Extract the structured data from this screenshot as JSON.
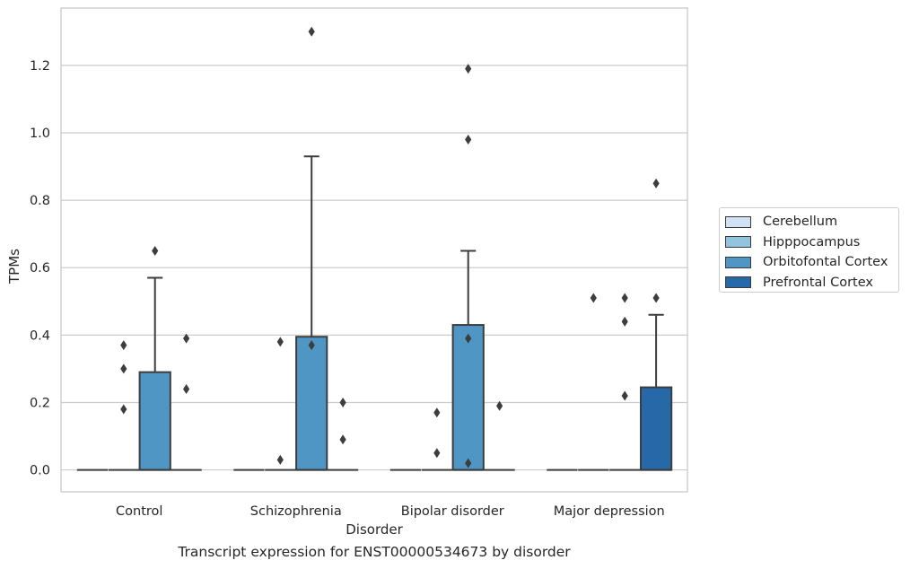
{
  "chart_data": {
    "type": "box",
    "title": "",
    "caption": "Transcript expression for ENST00000534673 by disorder",
    "xlabel": "Disorder",
    "ylabel": "TPMs",
    "ylim": [
      -0.065,
      1.37
    ],
    "yticks": [
      0.0,
      0.2,
      0.4,
      0.6,
      0.8,
      1.0,
      1.2
    ],
    "ytick_labels": [
      "0.0",
      "0.2",
      "0.4",
      "0.6",
      "0.8",
      "1.0",
      "1.2"
    ],
    "grid": "horizontal",
    "legend_position": "right",
    "categories": [
      "Control",
      "Schizophrenia",
      "Bipolar disorder",
      "Major depression"
    ],
    "series": [
      {
        "name": "Cerebellum",
        "color": "#cfe1f2",
        "boxes": [
          {
            "category": "Control",
            "q1": 0,
            "median": 0,
            "q3": 0,
            "whisker_low": 0,
            "whisker_high": 0,
            "outliers": []
          },
          {
            "category": "Schizophrenia",
            "q1": 0,
            "median": 0,
            "q3": 0,
            "whisker_low": 0,
            "whisker_high": 0,
            "outliers": []
          },
          {
            "category": "Bipolar disorder",
            "q1": 0,
            "median": 0,
            "q3": 0,
            "whisker_low": 0,
            "whisker_high": 0,
            "outliers": []
          },
          {
            "category": "Major depression",
            "q1": 0,
            "median": 0,
            "q3": 0,
            "whisker_low": 0,
            "whisker_high": 0,
            "outliers": []
          }
        ]
      },
      {
        "name": "Hipppocampus",
        "color": "#93c4de",
        "boxes": [
          {
            "category": "Control",
            "q1": 0,
            "median": 0,
            "q3": 0,
            "whisker_low": 0,
            "whisker_high": 0,
            "outliers": [
              0.37,
              0.3,
              0.18
            ]
          },
          {
            "category": "Schizophrenia",
            "q1": 0,
            "median": 0,
            "q3": 0,
            "whisker_low": 0,
            "whisker_high": 0,
            "outliers": [
              0.38,
              0.03
            ]
          },
          {
            "category": "Bipolar disorder",
            "q1": 0,
            "median": 0,
            "q3": 0,
            "whisker_low": 0,
            "whisker_high": 0,
            "outliers": [
              0.17,
              0.05
            ]
          },
          {
            "category": "Major depression",
            "q1": 0,
            "median": 0,
            "q3": 0,
            "whisker_low": 0,
            "whisker_high": 0,
            "outliers": [
              0.51
            ]
          }
        ]
      },
      {
        "name": "Orbitofontal Cortex",
        "color": "#5096c5",
        "boxes": [
          {
            "category": "Control",
            "q1": 0,
            "median": 0,
            "q3": 0.29,
            "whisker_low": 0,
            "whisker_high": 0.57,
            "outliers": [
              0.65
            ]
          },
          {
            "category": "Schizophrenia",
            "q1": 0,
            "median": 0,
            "q3": 0.395,
            "whisker_low": 0,
            "whisker_high": 0.93,
            "outliers": [
              1.3,
              0.37
            ]
          },
          {
            "category": "Bipolar disorder",
            "q1": 0,
            "median": 0,
            "q3": 0.43,
            "whisker_low": 0,
            "whisker_high": 0.65,
            "outliers": [
              0.98,
              1.19,
              0.39,
              0.02
            ]
          },
          {
            "category": "Major depression",
            "q1": 0,
            "median": 0,
            "q3": 0,
            "whisker_low": 0,
            "whisker_high": 0,
            "outliers": [
              0.51,
              0.44,
              0.22
            ]
          }
        ]
      },
      {
        "name": "Prefrontal Cortex",
        "color": "#2668a8",
        "boxes": [
          {
            "category": "Control",
            "q1": 0,
            "median": 0,
            "q3": 0,
            "whisker_low": 0,
            "whisker_high": 0,
            "outliers": [
              0.39,
              0.24
            ]
          },
          {
            "category": "Schizophrenia",
            "q1": 0,
            "median": 0,
            "q3": 0,
            "whisker_low": 0,
            "whisker_high": 0,
            "outliers": [
              0.2,
              0.09
            ]
          },
          {
            "category": "Bipolar disorder",
            "q1": 0,
            "median": 0,
            "q3": 0,
            "whisker_low": 0,
            "whisker_high": 0,
            "outliers": [
              0.19
            ]
          },
          {
            "category": "Major depression",
            "q1": 0,
            "median": 0,
            "q3": 0.245,
            "whisker_low": 0,
            "whisker_high": 0.46,
            "outliers": [
              0.85,
              0.51
            ]
          }
        ]
      }
    ]
  }
}
